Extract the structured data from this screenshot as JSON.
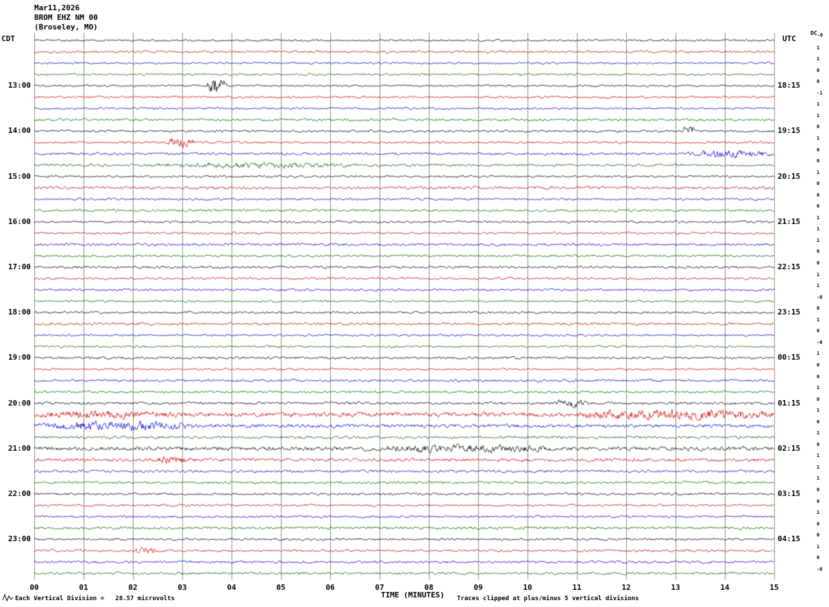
{
  "header": {
    "date": "Mar11,2026",
    "station": "BROM EHZ NM 00",
    "location": "(Broseley, MO)"
  },
  "axes": {
    "left_tz": "CDT",
    "right_tz": "UTC",
    "x_title": "TIME (MINUTES)",
    "dc_label": "DC"
  },
  "footer": {
    "scale_note": "Each Vertical Division =   28.57 microvolts",
    "clip_note": "Traces clipped at plus/minus 5 vertical divisions"
  },
  "chart_data": {
    "type": "line",
    "subtype": "helicorder-seismogram",
    "title": "BROM EHZ NM 00 (Broseley, MO) Mar11,2026",
    "xlabel": "TIME (MINUTES)",
    "x_range": [
      0,
      15
    ],
    "x_ticks": [
      "00",
      "01",
      "02",
      "03",
      "04",
      "05",
      "06",
      "07",
      "08",
      "09",
      "10",
      "11",
      "12",
      "13",
      "14",
      "15"
    ],
    "minutes_per_row": 15,
    "rows_per_hour": 4,
    "num_rows": 48,
    "first_row_start_cdt": "12:00",
    "utc_offset_hours": 5,
    "trace_colors": [
      "#000000",
      "#d40000",
      "#0000cc",
      "#006400"
    ],
    "grid_color": "#8f8f6b",
    "clip_divisions": 5,
    "microvolts_per_division": 28.57,
    "left_time_labels": [
      {
        "row": 4,
        "label": "13:00"
      },
      {
        "row": 8,
        "label": "14:00"
      },
      {
        "row": 12,
        "label": "15:00"
      },
      {
        "row": 16,
        "label": "16:00"
      },
      {
        "row": 20,
        "label": "17:00"
      },
      {
        "row": 24,
        "label": "18:00"
      },
      {
        "row": 28,
        "label": "19:00"
      },
      {
        "row": 32,
        "label": "20:00"
      },
      {
        "row": 36,
        "label": "21:00"
      },
      {
        "row": 40,
        "label": "22:00"
      },
      {
        "row": 44,
        "label": "23:00"
      }
    ],
    "right_time_labels": [
      {
        "row": 4,
        "label": "18:15"
      },
      {
        "row": 8,
        "label": "19:15"
      },
      {
        "row": 12,
        "label": "20:15"
      },
      {
        "row": 16,
        "label": "21:15"
      },
      {
        "row": 20,
        "label": "22:15"
      },
      {
        "row": 24,
        "label": "23:15"
      },
      {
        "row": 28,
        "label": "00:15"
      },
      {
        "row": 32,
        "label": "01:15"
      },
      {
        "row": 36,
        "label": "02:15"
      },
      {
        "row": 40,
        "label": "03:15"
      },
      {
        "row": 44,
        "label": "04:15"
      }
    ],
    "dc_values": [
      "-0",
      "1",
      "1",
      "0",
      "0",
      "-1",
      "1",
      "1",
      "0",
      "1",
      "0",
      "0",
      "1",
      "0",
      "0",
      "0",
      "1",
      "1",
      "1",
      "0",
      "0",
      "1",
      "1",
      "-0",
      "0",
      "1",
      "0",
      "-0",
      "1",
      "0",
      "0",
      "1",
      "0",
      "1",
      "0",
      "1",
      "0",
      "1",
      "1",
      "1",
      "0",
      "0",
      "1",
      "0",
      "0",
      "1",
      "0",
      "-0"
    ],
    "row_base_amps": [
      1.2,
      1.3,
      1.2,
      1.3,
      1.2,
      1.3,
      1.2,
      1.4,
      1.3,
      1.3,
      1.5,
      1.5,
      1.2,
      1.6,
      1.3,
      1.4,
      1.3,
      1.3,
      1.5,
      1.3,
      1.4,
      1.3,
      1.3,
      1.2,
      1.3,
      1.4,
      1.2,
      1.3,
      1.4,
      1.2,
      1.4,
      1.3,
      1.5,
      2.6,
      2.0,
      1.6,
      2.2,
      1.9,
      1.5,
      1.4,
      1.4,
      1.3,
      1.3,
      1.5,
      1.3,
      1.4,
      1.4,
      1.4
    ],
    "events": [
      {
        "row": 4,
        "start": 3.5,
        "end": 3.9,
        "amp": 9
      },
      {
        "row": 8,
        "start": 13.15,
        "end": 13.4,
        "amp": 6
      },
      {
        "row": 9,
        "start": 2.65,
        "end": 3.25,
        "amp": 5
      },
      {
        "row": 10,
        "start": 13.2,
        "end": 15,
        "amp": 3
      },
      {
        "row": 11,
        "start": 2.3,
        "end": 6.5,
        "amp": 1.8
      },
      {
        "row": 32,
        "start": 10.5,
        "end": 11.2,
        "amp": 3
      },
      {
        "row": 33,
        "start": 0,
        "end": 3,
        "amp": 2
      },
      {
        "row": 33,
        "start": 11.0,
        "end": 15,
        "amp": 3.5
      },
      {
        "row": 34,
        "start": 0,
        "end": 3.3,
        "amp": 3.5
      },
      {
        "row": 36,
        "start": 7.0,
        "end": 10.5,
        "amp": 2.2
      },
      {
        "row": 37,
        "start": 2.4,
        "end": 3.3,
        "amp": 3
      },
      {
        "row": 45,
        "start": 2.0,
        "end": 2.5,
        "amp": 2.5
      }
    ]
  }
}
